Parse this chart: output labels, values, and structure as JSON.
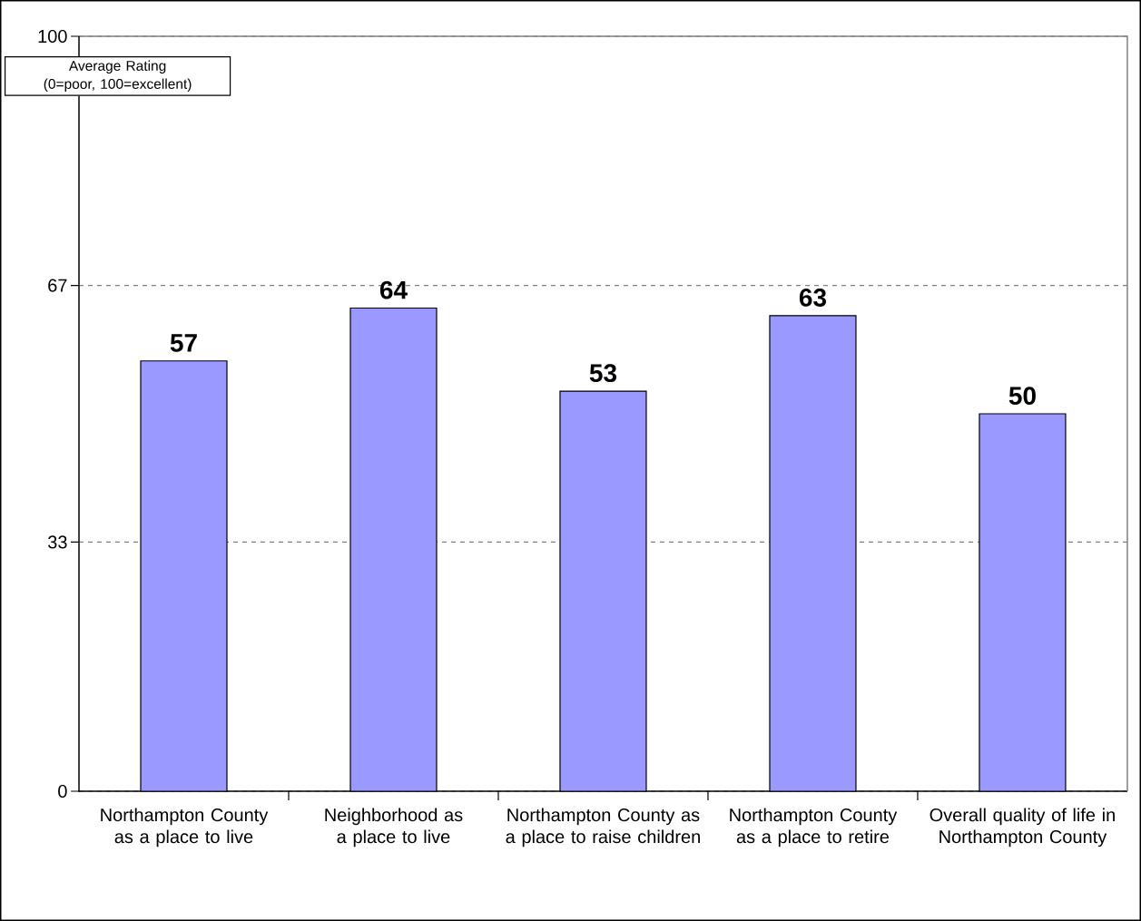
{
  "chart_data": {
    "type": "bar",
    "ylabel": "Average Rating (0=poor, 100=excellent)",
    "categories": [
      "Northampton County as a place to live",
      "Neighborhood as a place to live",
      "Northampton County as a place to raise children",
      "Northampton County as a place to retire",
      "Overall quality of life in Northampton County"
    ],
    "values": [
      57,
      64,
      53,
      63,
      50
    ],
    "color": "#9999ff",
    "ylim": [
      0,
      100
    ],
    "yticks": [
      0,
      33,
      67,
      100
    ],
    "grid": "y",
    "data_labels": true
  }
}
